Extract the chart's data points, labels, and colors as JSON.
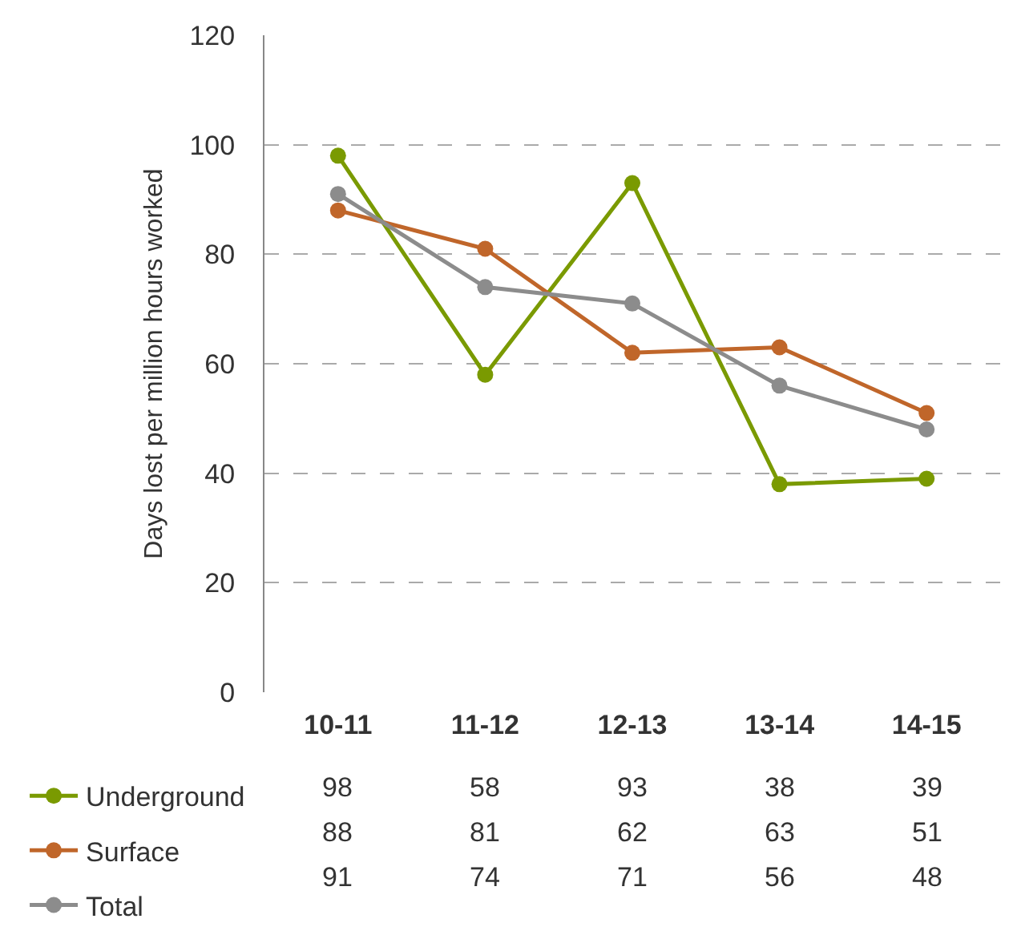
{
  "chart_data": {
    "type": "line",
    "ylabel": "Days lost per million hours worked",
    "categories": [
      "10-11",
      "11-12",
      "12-13",
      "13-14",
      "14-15"
    ],
    "series": [
      {
        "name": "Underground",
        "color": "#7a9a01",
        "values": [
          98,
          58,
          93,
          38,
          39
        ]
      },
      {
        "name": "Surface",
        "color": "#c0662a",
        "values": [
          88,
          81,
          62,
          63,
          51
        ]
      },
      {
        "name": "Total",
        "color": "#8c8c8c",
        "values": [
          91,
          74,
          71,
          56,
          48
        ]
      }
    ],
    "ylim": [
      0,
      120
    ],
    "yticks": [
      0,
      20,
      40,
      60,
      80,
      100,
      120
    ],
    "grid": "y",
    "legend": "bottom",
    "marker": "circle",
    "line_style": "solid",
    "data_labels": true
  }
}
